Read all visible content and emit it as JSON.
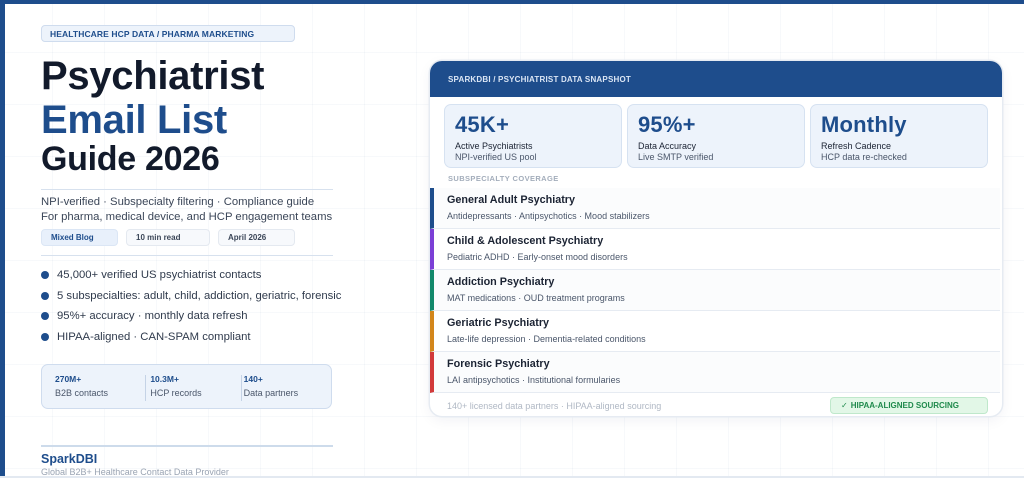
{
  "colors": {
    "brand_blue": "#1e4d8c",
    "title_dark": "#121a2b",
    "badge_green": "#1f8a4c",
    "accent_adult": "#1e4d8c",
    "accent_child": "#7b3fd6",
    "accent_addiction": "#13896b",
    "accent_geriatric": "#d3861b",
    "accent_forensic": "#d23a3a"
  },
  "left": {
    "tag": "HEALTHCARE HCP DATA  /  PHARMA MARKETING",
    "title_line1": "Psychiatrist",
    "title_line2": "Email List",
    "title_line3": "Guide 2026",
    "subtitle_line1": "NPI-verified · Subspecialty filtering · Compliance guide",
    "subtitle_line2": "For pharma, medical device, and HCP engagement teams",
    "chips": [
      {
        "label": "Mixed Blog"
      },
      {
        "label": "10 min read"
      },
      {
        "label": "April 2026"
      }
    ],
    "bullets": [
      {
        "text": "45,000+ verified US psychiatrist contacts"
      },
      {
        "text": "5 subspecialties: adult, child, addiction, geriatric, forensic"
      },
      {
        "text": "95%+ accuracy  ·  monthly data refresh"
      },
      {
        "text": "HIPAA-aligned  ·  CAN-SPAM compliant"
      }
    ],
    "stats": [
      {
        "value": "270M+",
        "label": "B2B contacts"
      },
      {
        "value": "10.3M+",
        "label": "HCP records"
      },
      {
        "value": "140+",
        "label": "Data partners"
      }
    ],
    "brand_name": "SparkDBI",
    "brand_tagline": "Global B2B+ Healthcare Contact Data Provider"
  },
  "card": {
    "header": "SPARKDBI / PSYCHIATRIST DATA SNAPSHOT",
    "tiles": [
      {
        "value": "45K+",
        "label": "Active Psychiatrists",
        "sub": "NPI-verified US pool"
      },
      {
        "value": "95%+",
        "label": "Data Accuracy",
        "sub": "Live SMTP verified"
      },
      {
        "value": "Monthly",
        "label": "Refresh Cadence",
        "sub": "HCP data re-checked"
      }
    ],
    "section_label": "SUBSPECIALTY COVERAGE",
    "rows": [
      {
        "name": "General Adult Psychiatry",
        "desc": "Antidepressants · Antipsychotics · Mood stabilizers"
      },
      {
        "name": "Child & Adolescent Psychiatry",
        "desc": "Pediatric ADHD · Early-onset mood disorders"
      },
      {
        "name": "Addiction Psychiatry",
        "desc": "MAT medications · OUD treatment programs"
      },
      {
        "name": "Geriatric Psychiatry",
        "desc": "Late-life depression · Dementia-related conditions"
      },
      {
        "name": "Forensic Psychiatry",
        "desc": "LAI antipsychotics · Institutional formularies"
      }
    ],
    "footer_note": "140+ licensed data partners  ·  HIPAA-aligned sourcing",
    "badge_icon": "✓",
    "badge_label": "HIPAA-ALIGNED SOURCING"
  }
}
